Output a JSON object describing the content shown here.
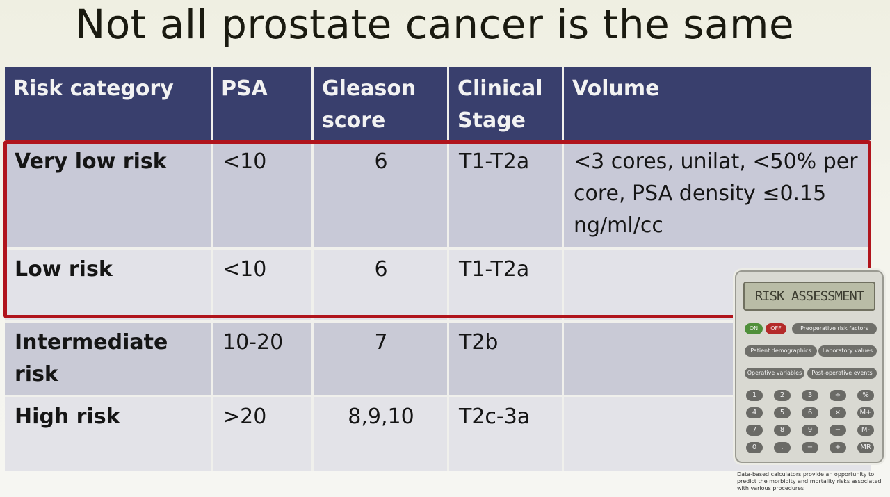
{
  "slide": {
    "title": "Not all prostate cancer is the same"
  },
  "table": {
    "headers": [
      "Risk category",
      "PSA",
      "Gleason score",
      "Clinical Stage",
      "Volume"
    ],
    "rows": [
      {
        "category": "Very low risk",
        "psa": "<10",
        "gleason": "6",
        "stage": "T1-T2a",
        "volume": "<3 cores, unilat, <50% per core, PSA density ≤0.15 ng/ml/cc"
      },
      {
        "category": "Low risk",
        "psa": "<10",
        "gleason": "6",
        "stage": "T1-T2a",
        "volume": ""
      },
      {
        "category": "Intermediate risk",
        "psa": "10-20",
        "gleason": "7",
        "stage": "T2b",
        "volume": ""
      },
      {
        "category": "High risk",
        "psa": ">20",
        "gleason": "8,9,10",
        "stage": "T2c-3a",
        "volume": ""
      }
    ]
  },
  "calculator": {
    "screen": "RISK ASSESSMENT",
    "on": "ON",
    "off": "OFF",
    "buttons": [
      "Preoperative risk factors",
      "Patient demographics",
      "Laboratory values",
      "Operative variables",
      "Post-operative events"
    ],
    "keys": [
      "1",
      "2",
      "3",
      "÷",
      "%",
      "4",
      "5",
      "6",
      "×",
      "M+",
      "7",
      "8",
      "9",
      "−",
      "M-",
      "0",
      ".",
      "=",
      "+",
      "MR"
    ],
    "caption": "Data-based calculators provide an opportunity to predict the morbidity and mortality risks associated with various procedures"
  },
  "colors": {
    "header": "#393f6d",
    "highlight": "#b0141c"
  }
}
